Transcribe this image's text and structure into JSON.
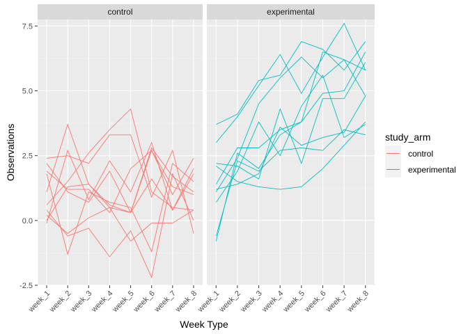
{
  "chart_data": {
    "type": "line",
    "facets": [
      "control",
      "experimental"
    ],
    "categories": [
      "week_1",
      "week_2",
      "week_3",
      "week_4",
      "week_5",
      "week_6",
      "week_7",
      "week_8"
    ],
    "xlabel": "Week Type",
    "ylabel": "Observations",
    "ylim": [
      -2.5,
      7.75
    ],
    "yticks": [
      -2.5,
      0.0,
      2.5,
      5.0,
      7.5
    ],
    "ytick_labels": [
      "-2.5",
      "0.0",
      "2.5",
      "5.0",
      "7.5"
    ],
    "grid": true,
    "legend": {
      "title": "study_arm",
      "position": "right",
      "entries": [
        {
          "label": "control",
          "color": "#F8766D"
        },
        {
          "label": "experimental",
          "color": "#00BFC4"
        }
      ]
    },
    "colors": {
      "control": "#F8766D",
      "experimental": "#00BFC4",
      "panel_bg": "#EBEBEB",
      "strip_bg": "#D9D9D9"
    },
    "series": {
      "control": [
        [
          0.2,
          -0.5,
          0.1,
          0.5,
          -0.8,
          -0.1,
          -0.1,
          0.4
        ],
        [
          1.1,
          3.7,
          1.4,
          0.5,
          0.3,
          2.7,
          1.0,
          2.4
        ],
        [
          2.4,
          2.5,
          2.2,
          3.3,
          3.3,
          0.9,
          2.7,
          -0.5
        ],
        [
          0.0,
          1.3,
          1.4,
          0.6,
          0.3,
          2.8,
          1.7,
          1.1
        ],
        [
          -0.1,
          2.7,
          0.8,
          2.3,
          1.1,
          3.0,
          0.4,
          2.0
        ],
        [
          0.4,
          -0.6,
          -0.3,
          -1.4,
          -0.4,
          -2.2,
          1.8,
          0.0
        ],
        [
          2.2,
          1.1,
          0.7,
          1.9,
          0.3,
          1.6,
          0.4,
          1.8
        ],
        [
          1.8,
          -1.3,
          1.1,
          0.7,
          0.5,
          -1.2,
          2.2,
          1.5
        ],
        [
          0.6,
          1.5,
          2.6,
          3.5,
          4.3,
          1.1,
          0.5,
          0.4
        ],
        [
          1.9,
          1.2,
          1.2,
          0.3,
          2.0,
          2.7,
          1.3,
          1.0
        ]
      ],
      "experimental": [
        [
          3.7,
          4.1,
          5.4,
          5.6,
          6.9,
          6.6,
          5.8,
          6.9
        ],
        [
          3.0,
          4.0,
          5.2,
          6.4,
          4.9,
          6.3,
          7.6,
          5.8
        ],
        [
          1.1,
          2.4,
          4.5,
          5.5,
          6.3,
          5.5,
          6.2,
          5.8
        ],
        [
          -0.8,
          2.6,
          2.0,
          3.3,
          3.8,
          6.5,
          6.2,
          4.8
        ],
        [
          2.2,
          2.1,
          1.6,
          4.3,
          2.2,
          4.7,
          4.7,
          6.1
        ],
        [
          1.4,
          2.8,
          2.8,
          3.5,
          3.8,
          4.9,
          5.0,
          6.5
        ],
        [
          0.7,
          1.9,
          3.8,
          2.5,
          4.4,
          5.6,
          3.2,
          3.7
        ],
        [
          -0.6,
          2.3,
          1.9,
          2.7,
          2.8,
          2.7,
          3.5,
          3.3
        ],
        [
          2.1,
          1.5,
          1.3,
          1.2,
          1.3,
          2.0,
          2.9,
          3.8
        ],
        [
          1.2,
          1.4,
          1.8,
          3.6,
          2.9,
          3.2,
          3.4,
          4.8
        ]
      ]
    }
  }
}
